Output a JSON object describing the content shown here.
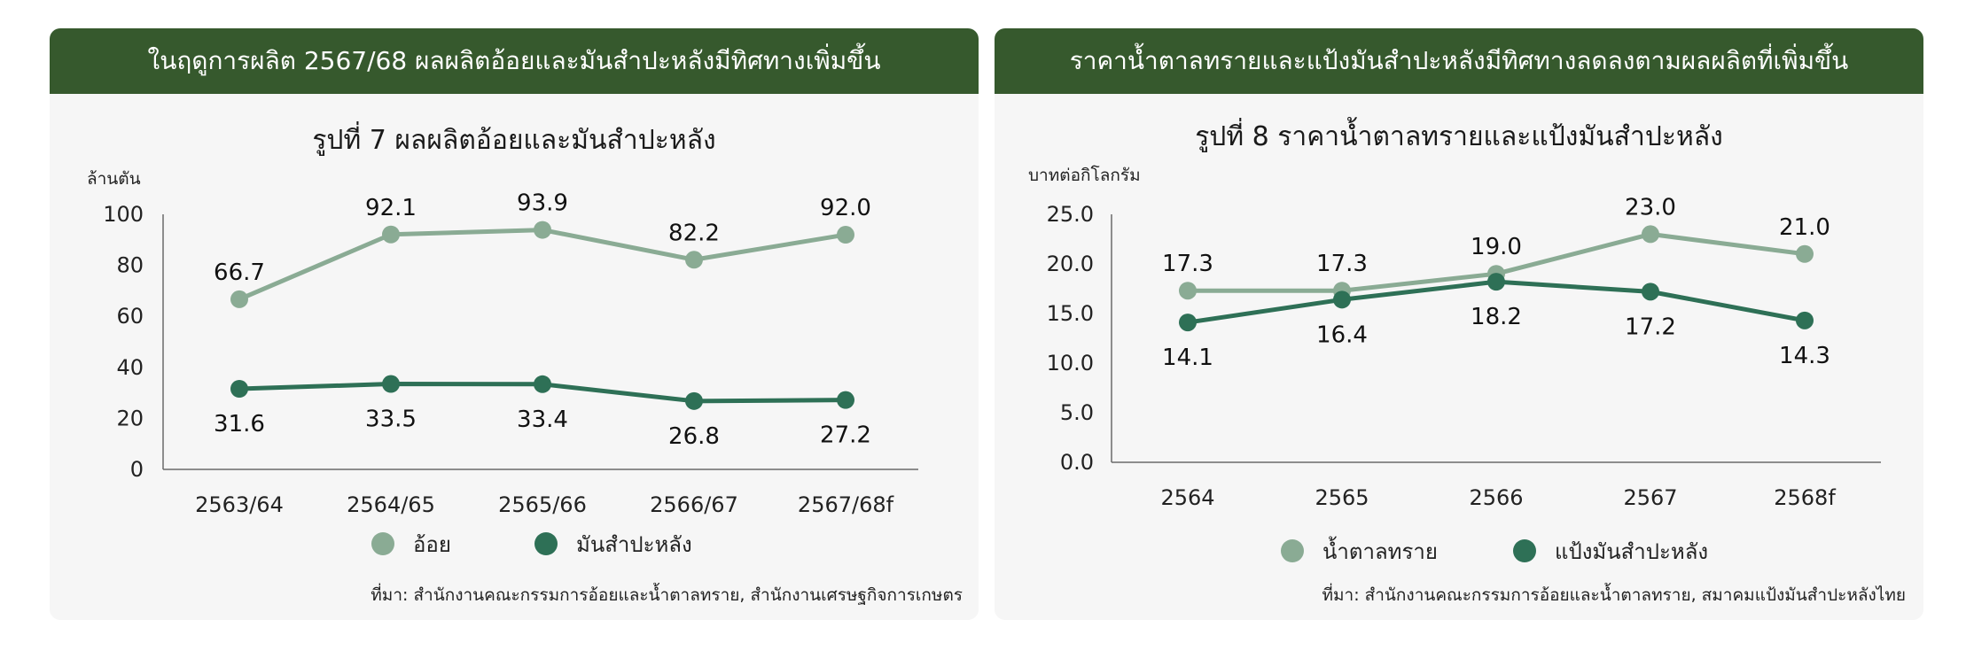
{
  "panels": [
    {
      "header": "ในฤดูการผลิต 2567/68 ผลผลิตอ้อยและมันสำปะหลังมีทิศทางเพิ่มขึ้น",
      "source": "ที่มา: สำนักงานคณะกรรมการอ้อยและน้ำตาลทราย, สำนักงานเศรษฐกิจการเกษตร"
    },
    {
      "header": "ราคาน้ำตาลทรายและแป้งมันสำปะหลังมีทิศทางลดลงตามผลผลิตที่เพิ่มขึ้น",
      "source": "ที่มา: สำนักงานคณะกรรมการอ้อยและน้ำตาลทราย, สมาคมแป้งมันสำปะหลังไทย"
    }
  ],
  "chart_data": [
    {
      "type": "line",
      "title": "รูปที่ 7  ผลผลิตอ้อยและมันสำปะหลัง",
      "ylabel": "ล้านตัน",
      "categories": [
        "2563/64",
        "2564/65",
        "2565/66",
        "2566/67",
        "2567/68f"
      ],
      "yticks": [
        "0",
        "20",
        "40",
        "60",
        "80",
        "100"
      ],
      "ylim": [
        0,
        100
      ],
      "series": [
        {
          "name": "อ้อย",
          "values": [
            66.7,
            92.1,
            93.9,
            82.2,
            92.0
          ],
          "labels": [
            "66.7",
            "92.1",
            "93.9",
            "82.2",
            "92.0"
          ],
          "color": "#8aab94",
          "label_position": "above"
        },
        {
          "name": "มันสำปะหลัง",
          "values": [
            31.6,
            33.5,
            33.4,
            26.8,
            27.2
          ],
          "labels": [
            "31.6",
            "33.5",
            "33.4",
            "26.8",
            "27.2"
          ],
          "color": "#2e7056",
          "label_position": "below"
        }
      ],
      "grid": false,
      "legend": "bottom"
    },
    {
      "type": "line",
      "title": "รูปที่ 8  ราคาน้ำตาลทรายและแป้งมันสำปะหลัง",
      "ylabel": "บาทต่อกิโลกรัม",
      "categories": [
        "2564",
        "2565",
        "2566",
        "2567",
        "2568f"
      ],
      "yticks": [
        "0.0",
        "5.0",
        "10.0",
        "15.0",
        "20.0",
        "25.0"
      ],
      "ylim": [
        0,
        25
      ],
      "series": [
        {
          "name": "น้ำตาลทราย",
          "values": [
            17.3,
            17.3,
            19.0,
            23.0,
            21.0
          ],
          "labels": [
            "17.3",
            "17.3",
            "19.0",
            "23.0",
            "21.0"
          ],
          "color": "#8aab94",
          "label_position": "above"
        },
        {
          "name": "แป้งมันสำปะหลัง",
          "values": [
            14.1,
            16.4,
            18.2,
            17.2,
            14.3
          ],
          "labels": [
            "14.1",
            "16.4",
            "18.2",
            "17.2",
            "14.3"
          ],
          "color": "#2e7056",
          "label_position": "below"
        }
      ],
      "grid": false,
      "legend": "bottom"
    }
  ]
}
